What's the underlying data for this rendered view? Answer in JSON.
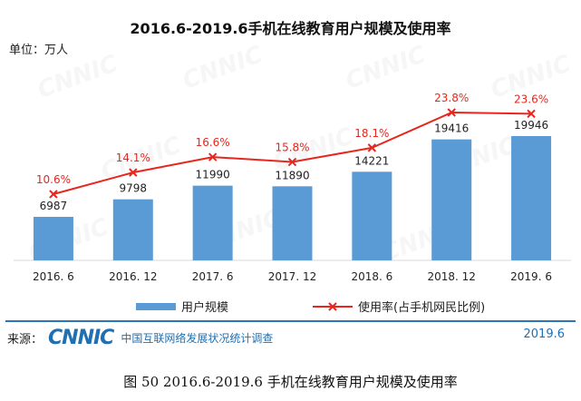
{
  "title": "2016.6-2019.6手机在线教育用户规模及使用率",
  "unit_label": "单位：万人",
  "legend": {
    "bar_label": "用户规模",
    "line_label": "使用率(占手机网民比例)"
  },
  "source": {
    "label": "来源：",
    "logo_text": "CNNIC",
    "org": "中国互联网络发展状况统计调查",
    "date": "2019.6"
  },
  "caption": "图  50    2016.6-2019.6 手机在线教育用户规模及使用率",
  "colors": {
    "bar": "#5B9BD5",
    "line": "#E8261E",
    "axis": "#D9D9D9",
    "accent": "#1F6FB2"
  },
  "chart_data": {
    "type": "bar",
    "title": "2016.6-2019.6手机在线教育用户规模及使用率",
    "xlabel": "",
    "ylabel": "万人",
    "categories": [
      "2016. 6",
      "2016. 12",
      "2017. 6",
      "2017. 12",
      "2018. 6",
      "2018. 12",
      "2019. 6"
    ],
    "series": [
      {
        "name": "用户规模",
        "type": "bar",
        "values": [
          6987,
          9798,
          11990,
          11890,
          14221,
          19416,
          19946
        ]
      },
      {
        "name": "使用率(占手机网民比例)",
        "type": "line",
        "values": [
          10.6,
          14.1,
          16.6,
          15.8,
          18.1,
          23.8,
          23.6
        ]
      }
    ],
    "bar_value_labels": [
      "6987",
      "9798",
      "11990",
      "11890",
      "14221",
      "19416",
      "19946"
    ],
    "line_value_labels": [
      "10.6%",
      "14.1%",
      "16.6%",
      "15.8%",
      "18.1%",
      "23.8%",
      "23.6%"
    ],
    "ylim_bar": [
      0,
      24000
    ],
    "ylim_line": [
      0,
      27
    ],
    "grid": false,
    "legend_position": "bottom"
  }
}
